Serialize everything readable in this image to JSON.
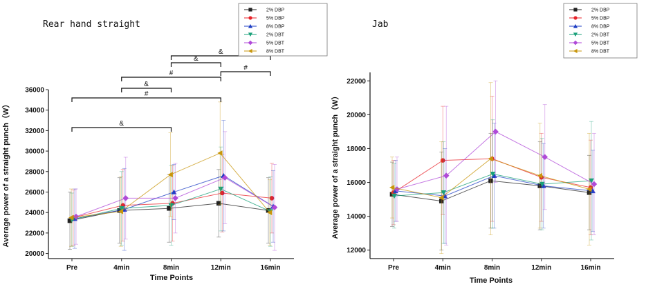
{
  "figure": {
    "legend_labels": [
      "2% DBP",
      "5% DBP",
      "8% DBP",
      "2% DBT",
      "5% DBT",
      "8% DBT"
    ],
    "series_colors": [
      "#222222",
      "#e8232a",
      "#1f3fc4",
      "#1aa07a",
      "#b04ad8",
      "#c8960c"
    ],
    "series_markers": [
      "square",
      "circle",
      "triangle-up",
      "triangle-down",
      "diamond",
      "triangle-left"
    ]
  },
  "chart_data": [
    {
      "type": "line",
      "title": "Rear hand straight",
      "xlabel": "Time Points",
      "ylabel": "Average power of a straight punch（W）",
      "categories": [
        "Pre",
        "4min",
        "8min",
        "12min",
        "16min"
      ],
      "ylim": [
        19500,
        36000
      ],
      "yticks": [
        20000,
        22000,
        24000,
        26000,
        28000,
        30000,
        32000,
        34000,
        36000
      ],
      "series": [
        {
          "name": "2% DBP",
          "values": [
            23200,
            24200,
            24400,
            24900,
            24200
          ],
          "errors": [
            2800,
            3200,
            3300,
            3300,
            3200
          ]
        },
        {
          "name": "5% DBP",
          "values": [
            23500,
            24700,
            24900,
            25900,
            25400
          ],
          "errors": [
            2700,
            3500,
            3700,
            3800,
            3400
          ]
        },
        {
          "name": "8% DBP",
          "values": [
            23400,
            24300,
            26000,
            27600,
            24600
          ],
          "errors": [
            2900,
            4000,
            2700,
            5400,
            3500
          ]
        },
        {
          "name": "2% DBT",
          "values": [
            23300,
            24400,
            24700,
            26300,
            24100
          ],
          "errors": [
            2600,
            3600,
            3900,
            4100,
            3400
          ]
        },
        {
          "name": "5% DBT",
          "values": [
            23600,
            25400,
            25400,
            27400,
            24500
          ],
          "errors": [
            2700,
            4000,
            3400,
            4500,
            4200
          ]
        },
        {
          "name": "8% DBT",
          "values": [
            23500,
            24100,
            27700,
            29800,
            24000
          ],
          "errors": [
            2800,
            3400,
            4100,
            5000,
            3200
          ]
        }
      ],
      "annotations": [
        {
          "label": "&",
          "from": "Pre",
          "to": "8min"
        },
        {
          "label": "#",
          "from": "Pre",
          "to": "12min"
        },
        {
          "label": "&",
          "from": "4min",
          "to": "8min"
        },
        {
          "label": "#",
          "from": "4min",
          "to": "12min"
        },
        {
          "label": "&",
          "from": "8min",
          "to": "12min"
        },
        {
          "label": "#",
          "from": "12min",
          "to": "16min"
        },
        {
          "label": "&",
          "from": "8min",
          "to": "16min"
        }
      ]
    },
    {
      "type": "line",
      "title": "Jab",
      "xlabel": "Time Points",
      "ylabel": "Average power of a straight punch（W）",
      "categories": [
        "Pre",
        "4min",
        "8min",
        "12min",
        "16min"
      ],
      "ylim": [
        11500,
        22500
      ],
      "yticks": [
        12000,
        14000,
        16000,
        18000,
        20000,
        22000
      ],
      "series": [
        {
          "name": "2% DBP",
          "values": [
            15300,
            14900,
            16100,
            15800,
            15400
          ],
          "errors": [
            1900,
            2900,
            2800,
            2600,
            2200
          ]
        },
        {
          "name": "5% DBP",
          "values": [
            15400,
            17300,
            17400,
            16300,
            15700
          ],
          "errors": [
            1900,
            3200,
            3700,
            2600,
            2800
          ]
        },
        {
          "name": "8% DBP",
          "values": [
            15500,
            15200,
            16400,
            15800,
            15500
          ],
          "errors": [
            1800,
            2800,
            3100,
            2500,
            2400
          ]
        },
        {
          "name": "2% DBT",
          "values": [
            15200,
            15400,
            16500,
            15900,
            16100
          ],
          "errors": [
            1900,
            3000,
            3200,
            2700,
            3500
          ]
        },
        {
          "name": "5% DBT",
          "values": [
            15600,
            16400,
            19000,
            17500,
            15900
          ],
          "errors": [
            1900,
            4100,
            3000,
            3100,
            3000
          ]
        },
        {
          "name": "8% DBT",
          "values": [
            15700,
            15100,
            17400,
            16400,
            15600
          ],
          "errors": [
            1800,
            3300,
            4500,
            3100,
            3300
          ]
        }
      ]
    }
  ]
}
